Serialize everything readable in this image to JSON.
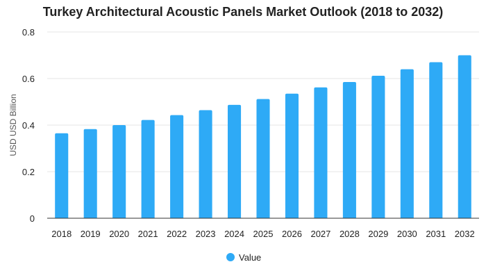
{
  "chart_data": {
    "type": "bar",
    "title": "Turkey Architectural Acoustic Panels Market Outlook (2018 to 2032)",
    "xlabel": "",
    "ylabel": "USD USD Billion",
    "categories": [
      "2018",
      "2019",
      "2020",
      "2021",
      "2022",
      "2023",
      "2024",
      "2025",
      "2026",
      "2027",
      "2028",
      "2029",
      "2030",
      "2031",
      "2032"
    ],
    "series": [
      {
        "name": "Value",
        "values": [
          0.365,
          0.383,
          0.4,
          0.422,
          0.443,
          0.464,
          0.487,
          0.512,
          0.535,
          0.562,
          0.585,
          0.612,
          0.64,
          0.67,
          0.7
        ]
      }
    ],
    "ylim": [
      0,
      0.8
    ],
    "yticks": [
      "0",
      "0.2",
      "0.4",
      "0.6",
      "0.8"
    ],
    "grid": true,
    "legend_position": "bottom",
    "colors": {
      "bar": "#2eaaf6",
      "grid": "#e6e6e6",
      "axis": "#333333"
    }
  }
}
